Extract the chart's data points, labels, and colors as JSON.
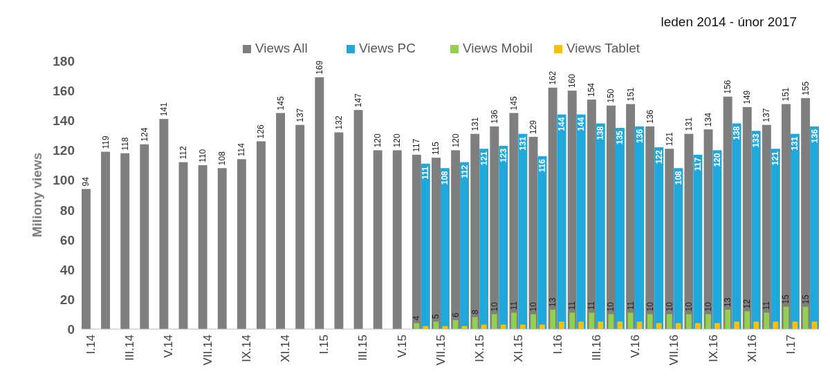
{
  "chart_data": {
    "type": "bar",
    "ylabel": "Miliony views",
    "annotations": [
      "leden 2014 - únor 2017"
    ],
    "categories": [
      "I.14",
      null,
      "III.14",
      null,
      "V.14",
      null,
      "VII.14",
      null,
      "IX.14",
      null,
      "XI.14",
      null,
      "I.15",
      null,
      "III.15",
      null,
      "V.15",
      null,
      "VII.15",
      null,
      "IX.15",
      null,
      "XI.15",
      null,
      "I.16",
      null,
      "III.16",
      null,
      "V.16",
      null,
      "VII.16",
      null,
      "IX.16",
      null,
      "XI.16",
      null,
      "I.17",
      null
    ],
    "series": [
      {
        "name": "Views All",
        "color": "#7f7f7f",
        "values": [
          94,
          119,
          118,
          124,
          141,
          112,
          110,
          108,
          114,
          126,
          145,
          137,
          169,
          132,
          147,
          120,
          120,
          117,
          115,
          120,
          131,
          136,
          145,
          129,
          162,
          160,
          154,
          150,
          151,
          136,
          121,
          131,
          134,
          156,
          149,
          137,
          151,
          155
        ],
        "value_labels": [
          "94",
          "119",
          "118",
          "124",
          "141",
          "112",
          "110",
          "108",
          "114",
          "126",
          "145",
          "137",
          "169",
          "132",
          "147",
          "120",
          "120",
          "117",
          "115",
          "120",
          "131",
          "136",
          "145",
          "129",
          "162",
          "160",
          "154",
          "150",
          "151",
          "136",
          "121",
          "131",
          "134",
          "156",
          "149",
          "137",
          "151",
          "155"
        ]
      },
      {
        "name": "Views PC",
        "color": "#1fa8dc",
        "values": [
          null,
          null,
          null,
          null,
          null,
          null,
          null,
          null,
          null,
          null,
          null,
          null,
          null,
          null,
          null,
          null,
          null,
          111,
          108,
          112,
          121,
          123,
          131,
          116,
          144,
          144,
          138,
          135,
          136,
          122,
          108,
          117,
          120,
          138,
          133,
          121,
          131,
          136
        ],
        "value_labels": [
          null,
          null,
          null,
          null,
          null,
          null,
          null,
          null,
          null,
          null,
          null,
          null,
          null,
          null,
          null,
          null,
          null,
          "111",
          "108",
          "112",
          "121",
          "123",
          "131",
          "116",
          "144",
          "144",
          "138",
          "135",
          "136",
          "122",
          "108",
          "117",
          "120",
          "138",
          "133",
          "121",
          "131",
          "136"
        ]
      },
      {
        "name": "Views Mobil",
        "color": "#92d050",
        "values": [
          null,
          null,
          null,
          null,
          null,
          null,
          null,
          null,
          null,
          null,
          null,
          null,
          null,
          null,
          null,
          null,
          null,
          4,
          5,
          6,
          8,
          10,
          11,
          10,
          13,
          11,
          11,
          10,
          11,
          10,
          10,
          10,
          10,
          13,
          12,
          11,
          15,
          15
        ],
        "value_labels": [
          null,
          null,
          null,
          null,
          null,
          null,
          null,
          null,
          null,
          null,
          null,
          null,
          null,
          null,
          null,
          null,
          null,
          "4",
          "5",
          "6",
          "8",
          "10",
          "11",
          "10",
          "13",
          "11",
          "11",
          "10",
          "11",
          "10",
          "10",
          "10",
          "10",
          "13",
          "12",
          "11",
          "15",
          "15"
        ]
      },
      {
        "name": "Views Tablet",
        "color": "#ffc000",
        "values": [
          null,
          null,
          null,
          null,
          null,
          null,
          null,
          null,
          null,
          null,
          null,
          null,
          null,
          null,
          null,
          null,
          null,
          2,
          2,
          2,
          3,
          3,
          3,
          3,
          5,
          5,
          5,
          5,
          5,
          4,
          4,
          4,
          4,
          5,
          5,
          5,
          5,
          5
        ]
      }
    ],
    "ylim": [
      0,
      180
    ],
    "yticks": [
      0,
      20,
      40,
      60,
      80,
      100,
      120,
      140,
      160,
      180
    ],
    "grid": false,
    "legend": "top"
  }
}
